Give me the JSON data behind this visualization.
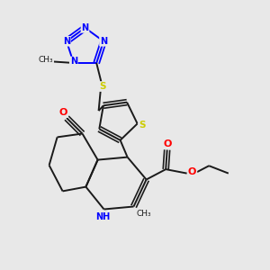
{
  "bg_color": "#e8e8e8",
  "bond_color": "#1a1a1a",
  "N_color": "#0000ff",
  "O_color": "#ff0000",
  "S_color": "#cccc00",
  "figsize": [
    3.0,
    3.0
  ],
  "dpi": 100,
  "lw": 1.4,
  "fs": 7.0,
  "xlim": [
    0,
    10
  ],
  "ylim": [
    0,
    10
  ]
}
